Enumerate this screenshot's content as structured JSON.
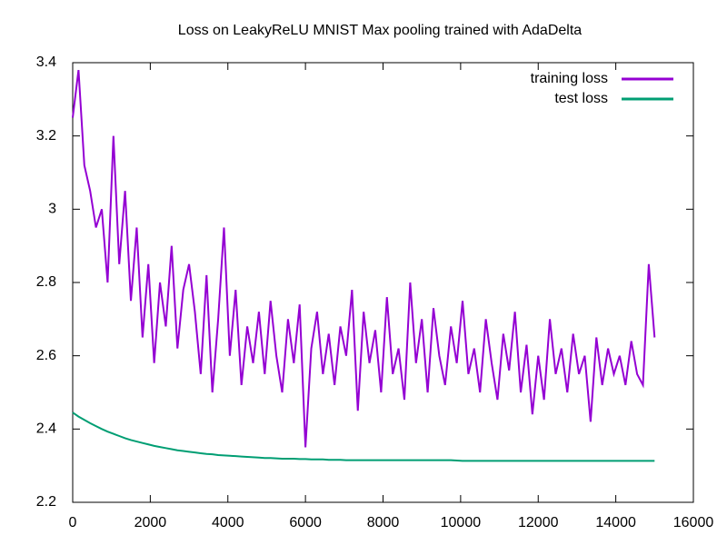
{
  "chart_data": {
    "type": "line",
    "title": "Loss on LeakyReLU MNIST Max pooling trained with AdaDelta",
    "x": [
      0,
      150,
      300,
      450,
      600,
      750,
      900,
      1050,
      1200,
      1350,
      1500,
      1650,
      1800,
      1950,
      2100,
      2250,
      2400,
      2550,
      2700,
      2850,
      3000,
      3150,
      3300,
      3450,
      3600,
      3750,
      3900,
      4050,
      4200,
      4350,
      4500,
      4650,
      4800,
      4950,
      5100,
      5250,
      5400,
      5550,
      5700,
      5850,
      6000,
      6150,
      6300,
      6450,
      6600,
      6750,
      6900,
      7050,
      7200,
      7350,
      7500,
      7650,
      7800,
      7950,
      8100,
      8250,
      8400,
      8550,
      8700,
      8850,
      9000,
      9150,
      9300,
      9450,
      9600,
      9750,
      9900,
      10050,
      10200,
      10350,
      10500,
      10650,
      10800,
      10950,
      11100,
      11250,
      11400,
      11550,
      11700,
      11850,
      12000,
      12150,
      12300,
      12450,
      12600,
      12750,
      12900,
      13050,
      13200,
      13350,
      13500,
      13650,
      13800,
      13950,
      14100,
      14250,
      14400,
      14550,
      14700,
      14850,
      15000
    ],
    "series": [
      {
        "name": "training loss",
        "color": "#9400d3",
        "values": [
          3.25,
          3.38,
          3.12,
          3.05,
          2.95,
          3.0,
          2.8,
          3.2,
          2.85,
          3.05,
          2.75,
          2.95,
          2.65,
          2.85,
          2.58,
          2.8,
          2.68,
          2.9,
          2.62,
          2.78,
          2.85,
          2.72,
          2.55,
          2.82,
          2.5,
          2.7,
          2.95,
          2.6,
          2.78,
          2.52,
          2.68,
          2.58,
          2.72,
          2.55,
          2.75,
          2.6,
          2.5,
          2.7,
          2.58,
          2.74,
          2.35,
          2.62,
          2.72,
          2.55,
          2.66,
          2.52,
          2.68,
          2.6,
          2.78,
          2.45,
          2.72,
          2.58,
          2.67,
          2.5,
          2.76,
          2.55,
          2.62,
          2.48,
          2.8,
          2.58,
          2.7,
          2.5,
          2.73,
          2.6,
          2.52,
          2.68,
          2.58,
          2.75,
          2.55,
          2.62,
          2.5,
          2.7,
          2.58,
          2.48,
          2.66,
          2.56,
          2.72,
          2.5,
          2.63,
          2.44,
          2.6,
          2.48,
          2.7,
          2.55,
          2.62,
          2.5,
          2.66,
          2.55,
          2.6,
          2.42,
          2.65,
          2.52,
          2.62,
          2.55,
          2.6,
          2.52,
          2.64,
          2.55,
          2.52,
          2.85,
          2.65
        ]
      },
      {
        "name": "test loss",
        "color": "#009e73",
        "values": [
          2.445,
          2.434,
          2.425,
          2.416,
          2.408,
          2.4,
          2.393,
          2.387,
          2.381,
          2.375,
          2.37,
          2.366,
          2.362,
          2.358,
          2.354,
          2.351,
          2.348,
          2.345,
          2.342,
          2.34,
          2.338,
          2.336,
          2.334,
          2.332,
          2.331,
          2.329,
          2.328,
          2.327,
          2.326,
          2.325,
          2.324,
          2.323,
          2.322,
          2.321,
          2.321,
          2.32,
          2.319,
          2.319,
          2.319,
          2.318,
          2.318,
          2.317,
          2.317,
          2.317,
          2.316,
          2.316,
          2.316,
          2.315,
          2.315,
          2.315,
          2.315,
          2.315,
          2.315,
          2.315,
          2.315,
          2.315,
          2.315,
          2.315,
          2.315,
          2.315,
          2.315,
          2.315,
          2.315,
          2.315,
          2.315,
          2.315,
          2.314,
          2.313,
          2.313,
          2.313,
          2.313,
          2.313,
          2.313,
          2.313,
          2.313,
          2.313,
          2.313,
          2.313,
          2.313,
          2.313,
          2.313,
          2.313,
          2.313,
          2.313,
          2.313,
          2.313,
          2.313,
          2.313,
          2.313,
          2.313,
          2.313,
          2.313,
          2.313,
          2.313,
          2.313,
          2.313,
          2.313,
          2.313,
          2.313,
          2.313,
          2.313
        ]
      }
    ],
    "xlim": [
      0,
      16000
    ],
    "xticks": [
      0,
      2000,
      4000,
      6000,
      8000,
      10000,
      12000,
      14000,
      16000
    ],
    "ylim": [
      2.2,
      3.4
    ],
    "yticks": [
      2.2,
      2.4,
      2.6,
      2.8,
      3,
      3.2,
      3.4
    ],
    "legend": "top-right"
  }
}
